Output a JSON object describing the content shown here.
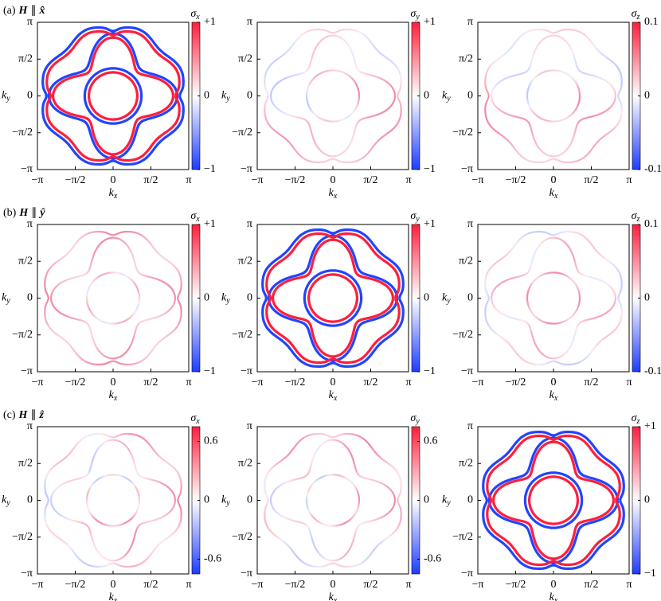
{
  "axes": {
    "x_symbol": "k",
    "x_sub": "x",
    "y_symbol": "k",
    "y_sub": "y",
    "ticks": [
      "−π",
      "−π/2",
      "0",
      "π/2",
      "π"
    ]
  },
  "rows": [
    {
      "label": "(a)",
      "field": "H",
      "parallel": "∥",
      "direction": "x̂",
      "panels": [
        {
          "colorbar": {
            "symbol": "σ",
            "sub": "x",
            "lim": [
              -1,
              1
            ],
            "ticks": [
              {
                "value": 1,
                "label": "+1"
              },
              0,
              {
                "value": -1,
                "label": "−1"
              }
            ]
          }
        },
        {
          "colorbar": {
            "symbol": "σ",
            "sub": "y",
            "lim": [
              -1,
              1
            ],
            "ticks": [
              {
                "value": 1,
                "label": "+1"
              },
              0,
              {
                "value": -1,
                "label": "−1"
              }
            ]
          }
        },
        {
          "colorbar": {
            "symbol": "σ",
            "sub": "z",
            "lim": [
              -0.1,
              0.1
            ],
            "ticks": [
              0.1,
              0,
              {
                "value": -0.1,
                "label": "-0.1"
              }
            ]
          }
        }
      ]
    },
    {
      "label": "(b)",
      "field": "H",
      "parallel": "∥",
      "direction": "ŷ",
      "panels": [
        {
          "colorbar": {
            "symbol": "σ",
            "sub": "x",
            "lim": [
              -1,
              1
            ],
            "ticks": [
              {
                "value": 1,
                "label": "+1"
              },
              0,
              {
                "value": -1,
                "label": "−1"
              }
            ]
          }
        },
        {
          "colorbar": {
            "symbol": "σ",
            "sub": "y",
            "lim": [
              -1,
              1
            ],
            "ticks": [
              {
                "value": 1,
                "label": "+1"
              },
              0,
              {
                "value": -1,
                "label": "−1"
              }
            ]
          }
        },
        {
          "colorbar": {
            "symbol": "σ",
            "sub": "z",
            "lim": [
              -0.1,
              0.1
            ],
            "ticks": [
              0.1,
              0,
              {
                "value": -0.1,
                "label": "-0.1"
              }
            ]
          }
        }
      ]
    },
    {
      "label": "(c)",
      "field": "H",
      "parallel": "∥",
      "direction": "ẑ",
      "panels": [
        {
          "colorbar": {
            "symbol": "σ",
            "sub": "x",
            "lim": [
              -0.75,
              0.75
            ],
            "ticks": [
              0.6,
              0,
              {
                "value": -0.6,
                "label": "-0.6"
              }
            ]
          }
        },
        {
          "colorbar": {
            "symbol": "σ",
            "sub": "y",
            "lim": [
              -0.75,
              0.75
            ],
            "ticks": [
              0.6,
              0,
              {
                "value": -0.6,
                "label": "-0.6"
              }
            ]
          }
        },
        {
          "colorbar": {
            "symbol": "σ",
            "sub": "z",
            "lim": [
              -1,
              1
            ],
            "ticks": [
              {
                "value": 1,
                "label": "+1"
              },
              0,
              {
                "value": -1,
                "label": "−1"
              }
            ]
          }
        }
      ]
    }
  ]
}
